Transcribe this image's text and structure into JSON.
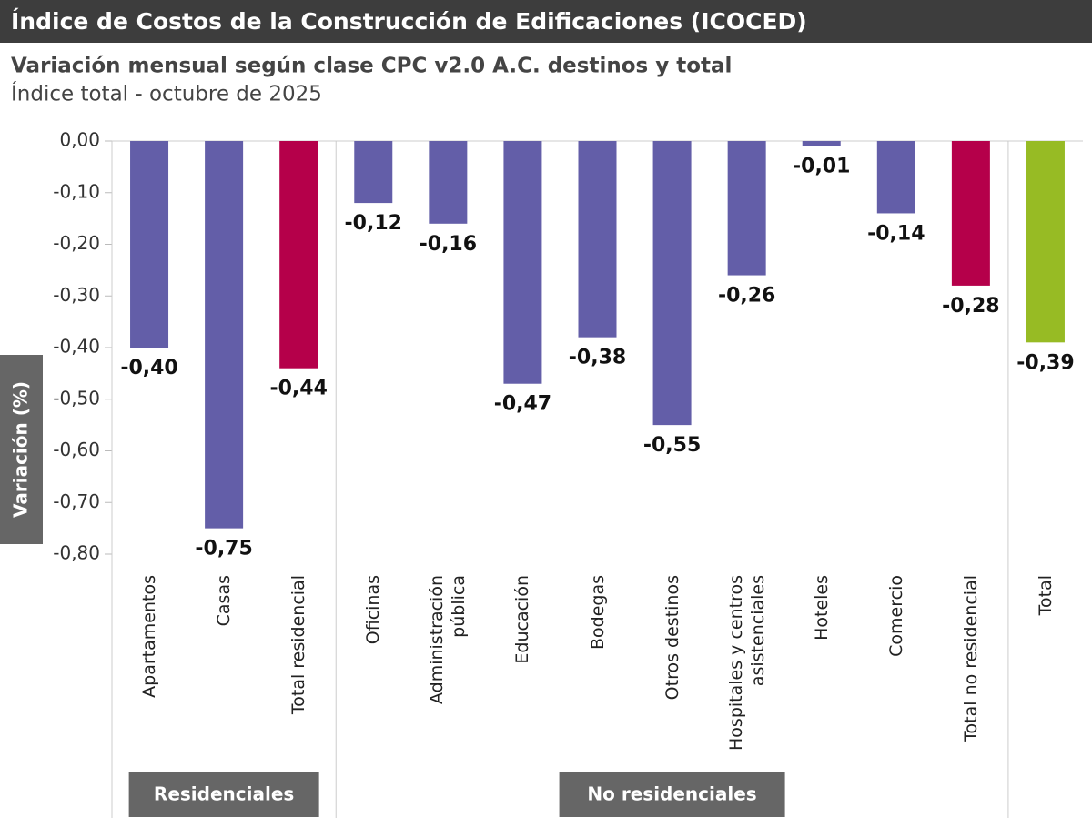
{
  "chart_data": {
    "type": "bar",
    "title": "Índice de Costos de la Construcción de Edificaciones (ICOCED)",
    "subtitle": "Variación mensual según clase CPC v2.0 A.C. destinos y total",
    "caption": "Índice total - octubre de 2025",
    "ylabel": "Variación (%)",
    "categories": [
      "Apartamentos",
      "Casas",
      "Total residencial",
      "Oficinas",
      "Administración pública",
      "Educación",
      "Bodegas",
      "Otros destinos",
      "Hospitales y centros asistenciales",
      "Hoteles",
      "Comercio",
      "Total no residencial",
      "Total"
    ],
    "values": [
      -0.4,
      -0.75,
      -0.44,
      -0.12,
      -0.16,
      -0.47,
      -0.38,
      -0.55,
      -0.26,
      -0.01,
      -0.14,
      -0.28,
      -0.39
    ],
    "value_labels": [
      "-0,40",
      "-0,75",
      "-0,44",
      "-0,12",
      "-0,16",
      "-0,47",
      "-0,38",
      "-0,55",
      "-0,26",
      "-0,01",
      "-0,14",
      "-0,28",
      "-0,39"
    ],
    "colors": [
      "#635ea8",
      "#635ea8",
      "#b5004a",
      "#635ea8",
      "#635ea8",
      "#635ea8",
      "#635ea8",
      "#635ea8",
      "#635ea8",
      "#635ea8",
      "#635ea8",
      "#b5004a",
      "#97bb24"
    ],
    "groups": [
      {
        "name": "Residenciales",
        "size": 3
      },
      {
        "name": "No residenciales",
        "size": 9
      },
      {
        "name": null,
        "size": 1
      }
    ],
    "ylim": [
      -0.8,
      0.0
    ],
    "yticks": [
      {
        "value": 0.0,
        "label": "0,00"
      },
      {
        "value": -0.1,
        "label": "-0,10"
      },
      {
        "value": -0.2,
        "label": "-0,20"
      },
      {
        "value": -0.3,
        "label": "-0,30"
      },
      {
        "value": -0.4,
        "label": "-0,40"
      },
      {
        "value": -0.5,
        "label": "-0,50"
      },
      {
        "value": -0.6,
        "label": "-0,60"
      },
      {
        "value": -0.7,
        "label": "-0,70"
      },
      {
        "value": -0.8,
        "label": "-0,80"
      }
    ],
    "grid": false
  }
}
